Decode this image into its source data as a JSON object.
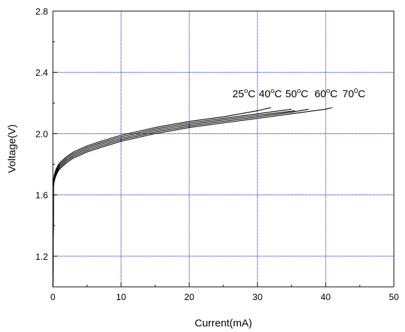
{
  "chart_data": {
    "type": "line",
    "xlabel": "Current(mA)",
    "ylabel": "Voltage(V)",
    "xlim": [
      0,
      50
    ],
    "ylim": [
      1.0,
      2.8
    ],
    "xticks": [
      0,
      10,
      20,
      30,
      40,
      50
    ],
    "xtick_labels": [
      "0",
      "10",
      "20",
      "30",
      "40",
      "50"
    ],
    "yticks": [
      1.2,
      1.6,
      2.0,
      2.4,
      2.8
    ],
    "ytick_labels": [
      "1.2",
      "1.6",
      "2.0",
      "2.4",
      "2.8"
    ],
    "grid": true,
    "colors": {
      "grid": "#0000cc",
      "line": "#000000",
      "axis": "#000000"
    },
    "series": [
      {
        "label_main": "25",
        "label_sup": "o",
        "label_tail": "C",
        "x": [
          0.0,
          0.1,
          0.2,
          0.4,
          0.7,
          1,
          2,
          3,
          5,
          7,
          10,
          15,
          20,
          25,
          30,
          32
        ],
        "y": [
          1.0,
          1.7,
          1.73,
          1.76,
          1.79,
          1.81,
          1.85,
          1.88,
          1.92,
          1.95,
          1.99,
          2.04,
          2.08,
          2.11,
          2.15,
          2.17
        ]
      },
      {
        "label_main": "40",
        "label_sup": "o",
        "label_tail": "C",
        "x": [
          0.0,
          0.1,
          0.2,
          0.4,
          0.7,
          1,
          2,
          3,
          5,
          7,
          10,
          15,
          20,
          25,
          30,
          35
        ],
        "y": [
          1.0,
          1.69,
          1.72,
          1.75,
          1.78,
          1.8,
          1.84,
          1.87,
          1.91,
          1.94,
          1.98,
          2.03,
          2.07,
          2.1,
          2.13,
          2.16
        ]
      },
      {
        "label_main": "50",
        "label_sup": "o",
        "label_tail": "C",
        "x": [
          0.0,
          0.1,
          0.2,
          0.4,
          0.7,
          1,
          2,
          3,
          5,
          7,
          10,
          15,
          20,
          25,
          30,
          35.5
        ],
        "y": [
          1.0,
          1.68,
          1.71,
          1.74,
          1.77,
          1.79,
          1.83,
          1.86,
          1.9,
          1.93,
          1.97,
          2.02,
          2.06,
          2.09,
          2.12,
          2.15
        ]
      },
      {
        "label_main": "60",
        "label_sup": "o",
        "label_tail": "C",
        "x": [
          0.0,
          0.1,
          0.2,
          0.4,
          0.7,
          1,
          2,
          3,
          5,
          7,
          10,
          15,
          20,
          25,
          30,
          35,
          37.5
        ],
        "y": [
          1.0,
          1.67,
          1.7,
          1.73,
          1.76,
          1.78,
          1.82,
          1.85,
          1.89,
          1.92,
          1.96,
          2.01,
          2.05,
          2.08,
          2.11,
          2.14,
          2.16
        ]
      },
      {
        "label_main": "70",
        "label_sup": "0",
        "label_tail": "C",
        "x": [
          0.0,
          0.1,
          0.2,
          0.4,
          0.7,
          1,
          2,
          3,
          5,
          7,
          10,
          15,
          20,
          25,
          30,
          35,
          40,
          41
        ],
        "y": [
          1.0,
          1.66,
          1.69,
          1.72,
          1.75,
          1.77,
          1.81,
          1.84,
          1.88,
          1.91,
          1.95,
          2.0,
          2.04,
          2.07,
          2.1,
          2.13,
          2.16,
          2.17
        ]
      }
    ]
  }
}
